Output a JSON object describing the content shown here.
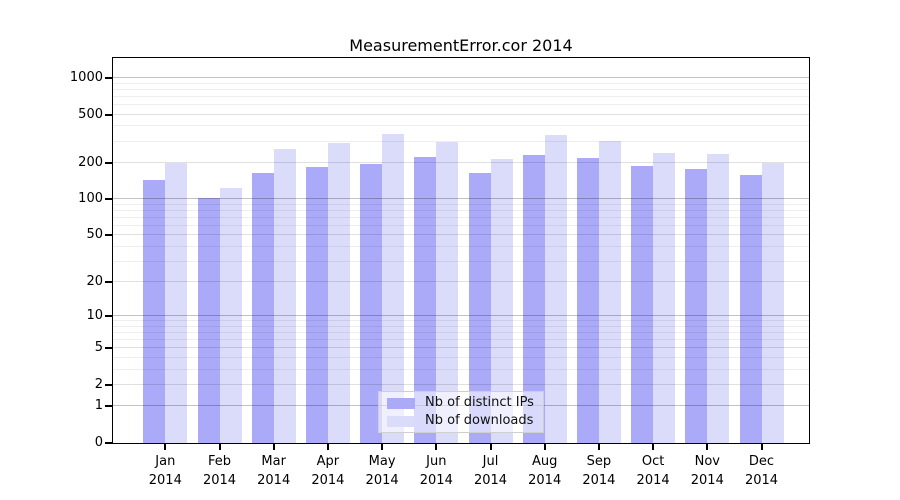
{
  "chart_data": {
    "type": "bar",
    "title": "MeasurementError.cor 2014",
    "categories": [
      "Jan 2014",
      "Feb 2014",
      "Mar 2014",
      "Apr 2014",
      "May 2014",
      "Jun 2014",
      "Jul 2014",
      "Aug 2014",
      "Sep 2014",
      "Oct 2014",
      "Nov 2014",
      "Dec 2014"
    ],
    "series": [
      {
        "name": "Nb of distinct IPs",
        "color": "#aaaaf8",
        "values": [
          145,
          102,
          165,
          185,
          195,
          225,
          164,
          232,
          218,
          190,
          178,
          159
        ]
      },
      {
        "name": "Nb of downloads",
        "color": "#dbdbfa",
        "values": [
          199,
          125,
          260,
          290,
          345,
          295,
          215,
          340,
          303,
          243,
          235,
          201
        ]
      }
    ],
    "xlabel": "",
    "ylabel": "",
    "yscale": "log10(value+1)",
    "y_ticks": [
      0,
      1,
      2,
      5,
      10,
      20,
      50,
      100,
      200,
      500,
      1000
    ],
    "y_minor_gridlines": [
      3,
      4,
      6,
      7,
      8,
      9,
      30,
      40,
      60,
      70,
      80,
      90,
      300,
      400,
      600,
      700,
      800,
      900
    ],
    "ylim": [
      0,
      1100
    ],
    "grid": true,
    "legend_position": "lower center inside plot"
  }
}
